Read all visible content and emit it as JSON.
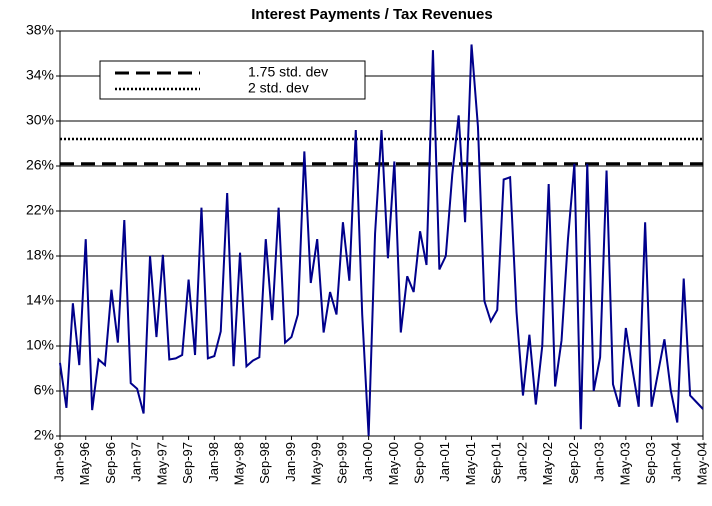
{
  "chart_data": {
    "type": "line",
    "title": "Interest Payments / Tax Revenues",
    "categories": [
      "Jan-96",
      null,
      null,
      null,
      "May-96",
      null,
      null,
      null,
      "Sep-96",
      null,
      null,
      null,
      "Jan-97",
      null,
      null,
      null,
      "May-97",
      null,
      null,
      null,
      "Sep-97",
      null,
      null,
      null,
      "Jan-98",
      null,
      null,
      null,
      "May-98",
      null,
      null,
      null,
      "Sep-98",
      null,
      null,
      null,
      "Jan-99",
      null,
      null,
      null,
      "May-99",
      null,
      null,
      null,
      "Sep-99",
      null,
      null,
      null,
      "Jan-00",
      null,
      null,
      null,
      "May-00",
      null,
      null,
      null,
      "Sep-00",
      null,
      null,
      null,
      "Jan-01",
      null,
      null,
      null,
      "May-01",
      null,
      null,
      null,
      "Sep-01",
      null,
      null,
      null,
      "Jan-02",
      null,
      null,
      null,
      "May-02",
      null,
      null,
      null,
      "Sep-02",
      null,
      null,
      null,
      "Jan-03",
      null,
      null,
      null,
      "May-03",
      null,
      null,
      null,
      "Sep-03",
      null,
      null,
      null,
      "Jan-04",
      null,
      null,
      null,
      "May-04"
    ],
    "values": [
      8.5,
      4.5,
      13.8,
      8.3,
      19.5,
      4.3,
      8.8,
      8.3,
      15.0,
      10.3,
      21.2,
      6.7,
      6.2,
      4.0,
      18.0,
      10.8,
      18.1,
      8.8,
      8.9,
      9.2,
      15.9,
      9.2,
      22.3,
      8.9,
      9.1,
      11.3,
      23.6,
      8.2,
      18.3,
      8.2,
      8.7,
      9.0,
      19.5,
      12.3,
      22.3,
      10.3,
      10.8,
      12.8,
      27.3,
      15.6,
      19.5,
      11.2,
      14.8,
      12.8,
      21.0,
      15.8,
      29.2,
      12.8,
      2.0,
      20.0,
      29.2,
      17.8,
      26.4,
      11.2,
      16.2,
      14.8,
      20.2,
      17.2,
      36.3,
      16.8,
      18.0,
      25.2,
      30.5,
      21.0,
      36.8,
      29.5,
      14.0,
      12.2,
      13.2,
      24.8,
      25.0,
      13.0,
      5.6,
      11.0,
      4.8,
      10.0,
      24.4,
      6.4,
      10.5,
      19.5,
      26.2,
      2.6,
      26.2,
      6.0,
      9.0,
      25.6,
      6.6,
      4.6,
      11.6,
      8.0,
      4.6,
      21.0,
      4.6,
      7.6,
      10.6,
      6.0,
      3.2,
      16.0,
      5.6,
      5.0,
      4.4
    ],
    "color": "#00008b",
    "reference_lines": [
      {
        "name": "1.75 std. dev",
        "value": 26.2,
        "style": "dashed"
      },
      {
        "name": "2 std. dev",
        "value": 28.4,
        "style": "dotted"
      }
    ],
    "ylim": [
      2,
      38
    ],
    "yticks": [
      {
        "value": 2,
        "label": "2%"
      },
      {
        "value": 6,
        "label": "6%"
      },
      {
        "value": 10,
        "label": "10%"
      },
      {
        "value": 14,
        "label": "14%"
      },
      {
        "value": 18,
        "label": "18%"
      },
      {
        "value": 22,
        "label": "22%"
      },
      {
        "value": 26,
        "label": "26%"
      },
      {
        "value": 30,
        "label": "30%"
      },
      {
        "value": 34,
        "label": "34%"
      },
      {
        "value": 38,
        "label": "38%"
      }
    ],
    "grid": true
  }
}
